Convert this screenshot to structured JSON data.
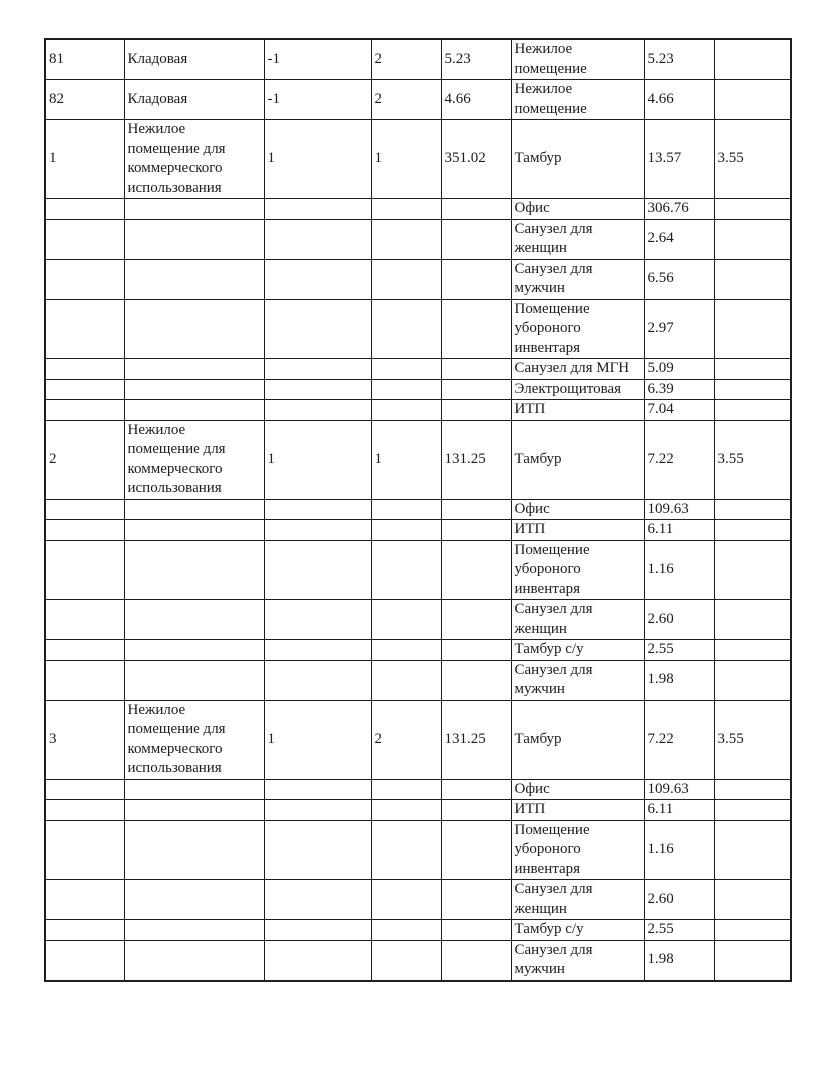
{
  "page": {
    "background_color": "#ffffff",
    "text_color": "#1c1c1c",
    "border_color": "#1f1f1f"
  },
  "table": {
    "description": "explication-table-continuation",
    "rows": [
      [
        "81",
        "Кладовая",
        "-1",
        "2",
        "5.23",
        "Нежилое помещение",
        "5.23",
        ""
      ],
      [
        "82",
        "Кладовая",
        "-1",
        "2",
        "4.66",
        "Нежилое помещение",
        "4.66",
        ""
      ],
      [
        "1",
        "Нежилое помещение для коммерческого использования",
        "1",
        "1",
        "351.02",
        "Тамбур",
        "13.57",
        "3.55"
      ],
      [
        "",
        "",
        "",
        "",
        "",
        "Офис",
        "306.76",
        ""
      ],
      [
        "",
        "",
        "",
        "",
        "",
        "Санузел для женщин",
        "2.64",
        ""
      ],
      [
        "",
        "",
        "",
        "",
        "",
        "Санузел для мужчин",
        "6.56",
        ""
      ],
      [
        "",
        "",
        "",
        "",
        "",
        "Помещение убороного инвентаря",
        "2.97",
        ""
      ],
      [
        "",
        "",
        "",
        "",
        "",
        "Санузел для МГН",
        "5.09",
        ""
      ],
      [
        "",
        "",
        "",
        "",
        "",
        "Электрощитовая",
        "6.39",
        ""
      ],
      [
        "",
        "",
        "",
        "",
        "",
        "ИТП",
        "7.04",
        ""
      ],
      [
        "2",
        "Нежилое помещение для коммерческого использования",
        "1",
        "1",
        "131.25",
        "Тамбур",
        "7.22",
        "3.55"
      ],
      [
        "",
        "",
        "",
        "",
        "",
        "Офис",
        "109.63",
        ""
      ],
      [
        "",
        "",
        "",
        "",
        "",
        "ИТП",
        "6.11",
        ""
      ],
      [
        "",
        "",
        "",
        "",
        "",
        "Помещение убороного инвентаря",
        "1.16",
        ""
      ],
      [
        "",
        "",
        "",
        "",
        "",
        "Санузел для женщин",
        "2.60",
        ""
      ],
      [
        "",
        "",
        "",
        "",
        "",
        "Тамбур с/у",
        "2.55",
        ""
      ],
      [
        "",
        "",
        "",
        "",
        "",
        "Санузел для мужчин",
        "1.98",
        ""
      ],
      [
        "3",
        "Нежилое помещение для коммерческого использования",
        "1",
        "2",
        "131.25",
        "Тамбур",
        "7.22",
        "3.55"
      ],
      [
        "",
        "",
        "",
        "",
        "",
        "Офис",
        "109.63",
        ""
      ],
      [
        "",
        "",
        "",
        "",
        "",
        "ИТП",
        "6.11",
        ""
      ],
      [
        "",
        "",
        "",
        "",
        "",
        "Помещение убороного инвентаря",
        "1.16",
        ""
      ],
      [
        "",
        "",
        "",
        "",
        "",
        "Санузел для женщин",
        "2.60",
        ""
      ],
      [
        "",
        "",
        "",
        "",
        "",
        "Тамбур с/у",
        "2.55",
        ""
      ],
      [
        "",
        "",
        "",
        "",
        "",
        "Санузел для мужчин",
        "1.98",
        ""
      ]
    ]
  }
}
